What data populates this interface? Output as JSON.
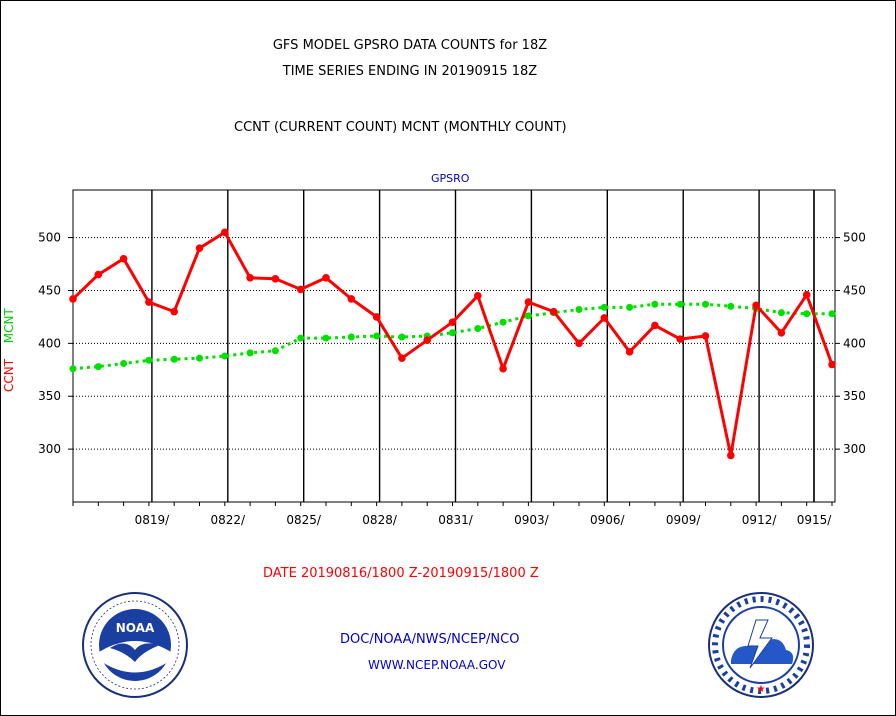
{
  "header": {
    "title_line1": "GFS MODEL GPSRO DATA COUNTS for 18Z",
    "title_line2": "TIME SERIES ENDING IN 20190915 18Z",
    "title_line3": "CCNT (CURRENT COUNT) MCNT (MONTHLY COUNT)"
  },
  "footer": {
    "date_range": "DATE 20190816/1800 Z-20190915/1800 Z",
    "org_text": "DOC/NOAA/NWS/NCEP/NCO",
    "url_text": "WWW.NCEP.NOAA.GOV"
  },
  "logos": {
    "noaa_label": "NOAA",
    "nws_label": "NATIONAL WEATHER SERVICE"
  },
  "colors": {
    "ccnt": "#ff0000",
    "mcnt": "#00e000",
    "grid": "#000000",
    "label_blue": "#0000cc"
  },
  "chart_data": {
    "type": "line",
    "title": "GPSRO",
    "ylabel": "CCNT MCNT",
    "ylim": [
      250,
      545
    ],
    "yticks": [
      300,
      350,
      400,
      450,
      500
    ],
    "grid": true,
    "xlabels": [
      "0819/",
      "0822/",
      "0825/",
      "0828/",
      "0831/",
      "0903/",
      "0906/",
      "0909/",
      "0912/",
      "0915/"
    ],
    "x": [
      "0816",
      "0817",
      "0818",
      "0819",
      "0820",
      "0821",
      "0822",
      "0823",
      "0824",
      "0825",
      "0826",
      "0827",
      "0828",
      "0829",
      "0830",
      "0831",
      "0901",
      "0902",
      "0903",
      "0904",
      "0905",
      "0906",
      "0907",
      "0908",
      "0909",
      "0910",
      "0911",
      "0912",
      "0913",
      "0914",
      "0915"
    ],
    "series": [
      {
        "name": "CCNT",
        "color": "#ff0000",
        "values": [
          442,
          465,
          480,
          439,
          430,
          490,
          505,
          462,
          461,
          451,
          462,
          442,
          425,
          386,
          403,
          420,
          445,
          376,
          439,
          430,
          400,
          424,
          392,
          417,
          404,
          407,
          294,
          436,
          410,
          446,
          380
        ]
      },
      {
        "name": "MCNT",
        "color": "#00e000",
        "values": [
          376,
          378,
          381,
          384,
          385,
          386,
          388,
          391,
          393,
          405,
          405,
          406,
          407,
          406,
          407,
          410,
          414,
          420,
          426,
          429,
          432,
          434,
          434,
          437,
          437,
          437,
          435,
          433,
          429,
          428,
          428
        ]
      }
    ]
  }
}
